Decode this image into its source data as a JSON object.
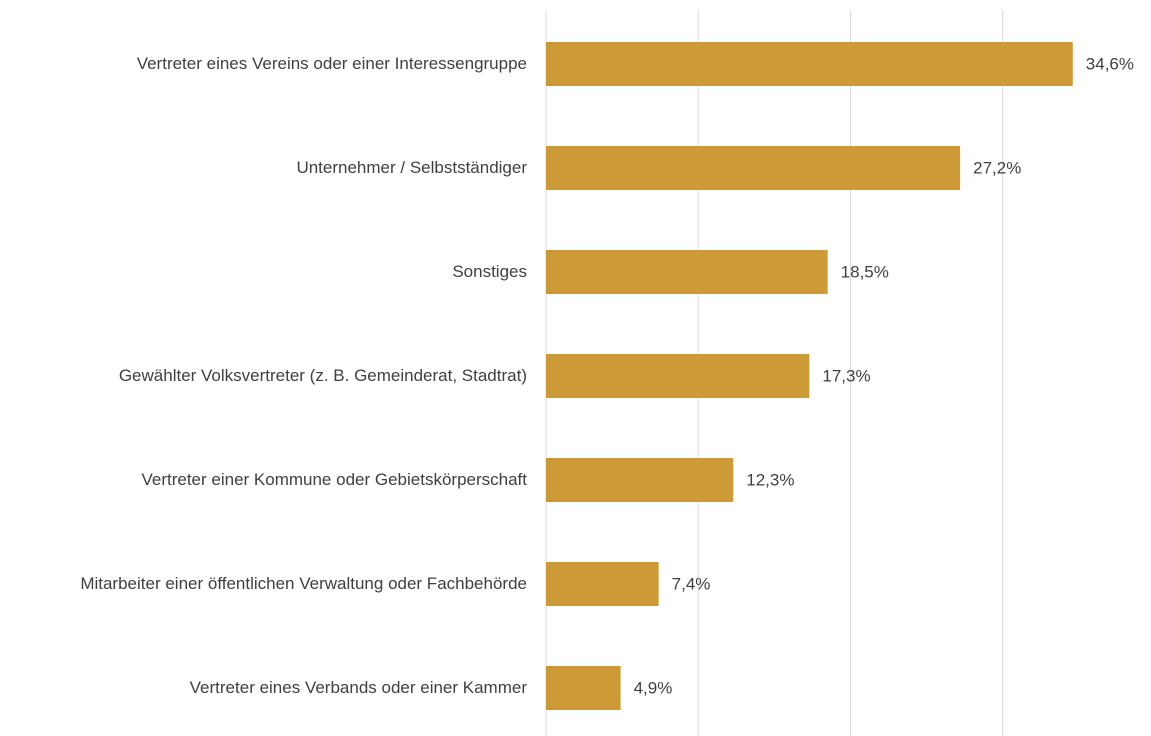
{
  "chart_data": {
    "type": "bar",
    "orientation": "horizontal",
    "categories": [
      "Vertreter eines Vereins oder einer Interessengruppe",
      "Unternehmer / Selbstständiger",
      "Sonstiges",
      "Gewählter Volksvertreter (z. B. Gemeinderat, Stadtrat)",
      "Vertreter einer Kommune oder Gebietskörperschaft",
      "Mitarbeiter einer öffentlichen Verwaltung oder Fachbehörde",
      "Vertreter eines Verbands oder einer Kammer"
    ],
    "values": [
      34.6,
      27.2,
      18.5,
      17.3,
      12.3,
      7.4,
      4.9
    ],
    "value_labels": [
      "34,6%",
      "27,2%",
      "18,5%",
      "17,3%",
      "12,3%",
      "7,4%",
      "4,9%"
    ],
    "color": "#cc9a36",
    "xlim": [
      0,
      40
    ],
    "xticks": [
      0,
      10,
      20,
      30
    ],
    "grid": true
  }
}
